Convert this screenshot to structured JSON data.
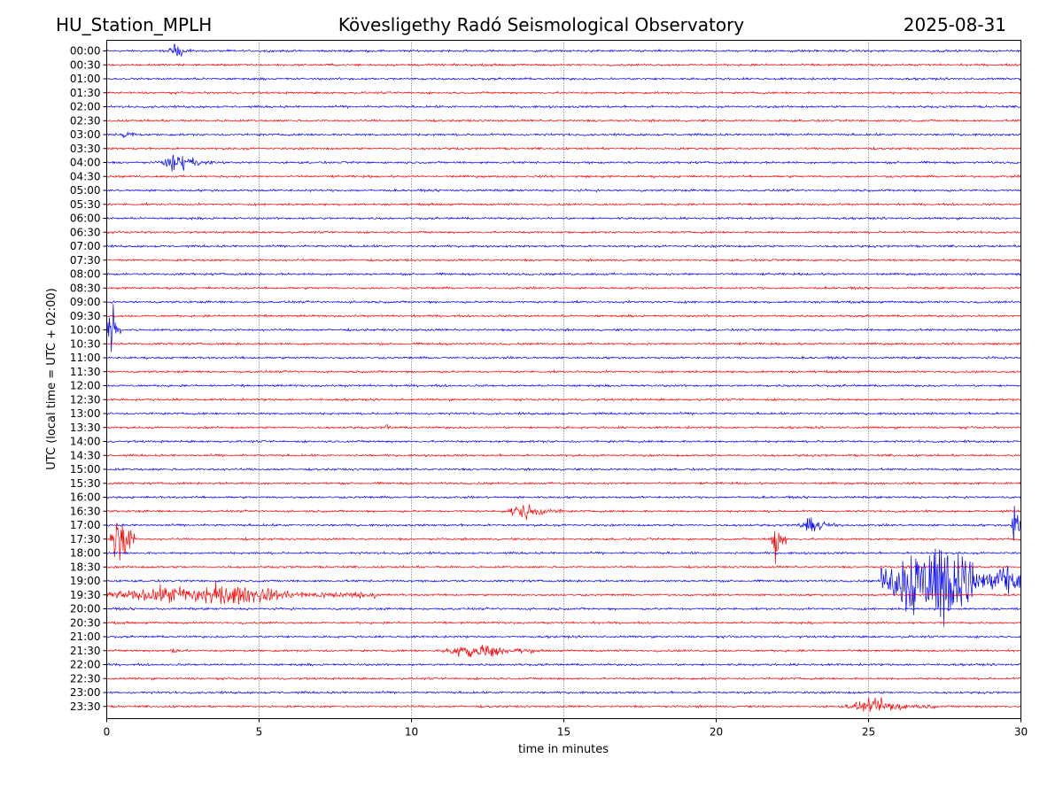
{
  "header": {
    "station": "HU_Station_MPLH",
    "observatory": "Kövesligethy Radó Seismological Observatory",
    "date": "2025-08-31"
  },
  "chart_data": {
    "type": "line",
    "xlabel": "time in minutes",
    "ylabel": "UTC (local time = UTC + 02:00)",
    "xlim": [
      0,
      30
    ],
    "x_ticks": [
      0,
      5,
      10,
      15,
      20,
      25,
      30
    ],
    "x_tick_labels": [
      "0",
      "5",
      "10",
      "15",
      "20",
      "25",
      "30"
    ],
    "grid": "vertical dotted lines at x ticks",
    "row_labels": [
      "00:00",
      "00:30",
      "01:00",
      "01:30",
      "02:00",
      "02:30",
      "03:00",
      "03:30",
      "04:00",
      "04:30",
      "05:00",
      "05:30",
      "06:00",
      "06:30",
      "07:00",
      "07:30",
      "08:00",
      "08:30",
      "09:00",
      "09:30",
      "10:00",
      "10:30",
      "11:00",
      "11:30",
      "12:00",
      "12:30",
      "13:00",
      "13:30",
      "14:00",
      "14:30",
      "15:00",
      "15:30",
      "16:00",
      "16:30",
      "17:00",
      "17:30",
      "18:00",
      "18:30",
      "19:00",
      "19:30",
      "20:00",
      "20:30",
      "21:00",
      "21:30",
      "22:00",
      "22:30",
      "23:00",
      "23:30"
    ],
    "colors": [
      "#0000ff",
      "#ff0000"
    ],
    "noise_level": 0.06,
    "events": [
      {
        "row": "00:00",
        "x_start": 2.0,
        "x_end": 2.8,
        "amp": 0.5
      },
      {
        "row": "03:00",
        "x_start": 0.4,
        "x_end": 1.2,
        "amp": 0.25
      },
      {
        "row": "04:00",
        "x_start": 1.7,
        "x_end": 3.5,
        "amp": 0.55
      },
      {
        "row": "10:00",
        "x_start": 0.0,
        "x_end": 0.45,
        "amp": 1.7
      },
      {
        "row": "13:30",
        "x_start": 9.1,
        "x_end": 9.4,
        "amp": 0.3
      },
      {
        "row": "16:30",
        "x_start": 13.0,
        "x_end": 15.0,
        "amp": 0.5
      },
      {
        "row": "17:00",
        "x_start": 22.7,
        "x_end": 24.0,
        "amp": 0.5
      },
      {
        "row": "17:00",
        "x_start": 29.7,
        "x_end": 30.0,
        "amp": 2.0
      },
      {
        "row": "17:30",
        "x_start": 0.1,
        "x_end": 0.9,
        "amp": 2.5
      },
      {
        "row": "17:30",
        "x_start": 21.8,
        "x_end": 22.3,
        "amp": 1.5
      },
      {
        "row": "19:00",
        "x_start": 25.4,
        "x_end": 30.0,
        "amp": 3.0
      },
      {
        "row": "19:30",
        "x_start": 0.0,
        "x_end": 9.0,
        "amp": 0.7
      },
      {
        "row": "21:30",
        "x_start": 2.1,
        "x_end": 2.4,
        "amp": 0.4
      },
      {
        "row": "21:30",
        "x_start": 11.0,
        "x_end": 14.0,
        "amp": 0.55
      },
      {
        "row": "23:30",
        "x_start": 24.2,
        "x_end": 27.2,
        "amp": 0.5
      }
    ]
  }
}
